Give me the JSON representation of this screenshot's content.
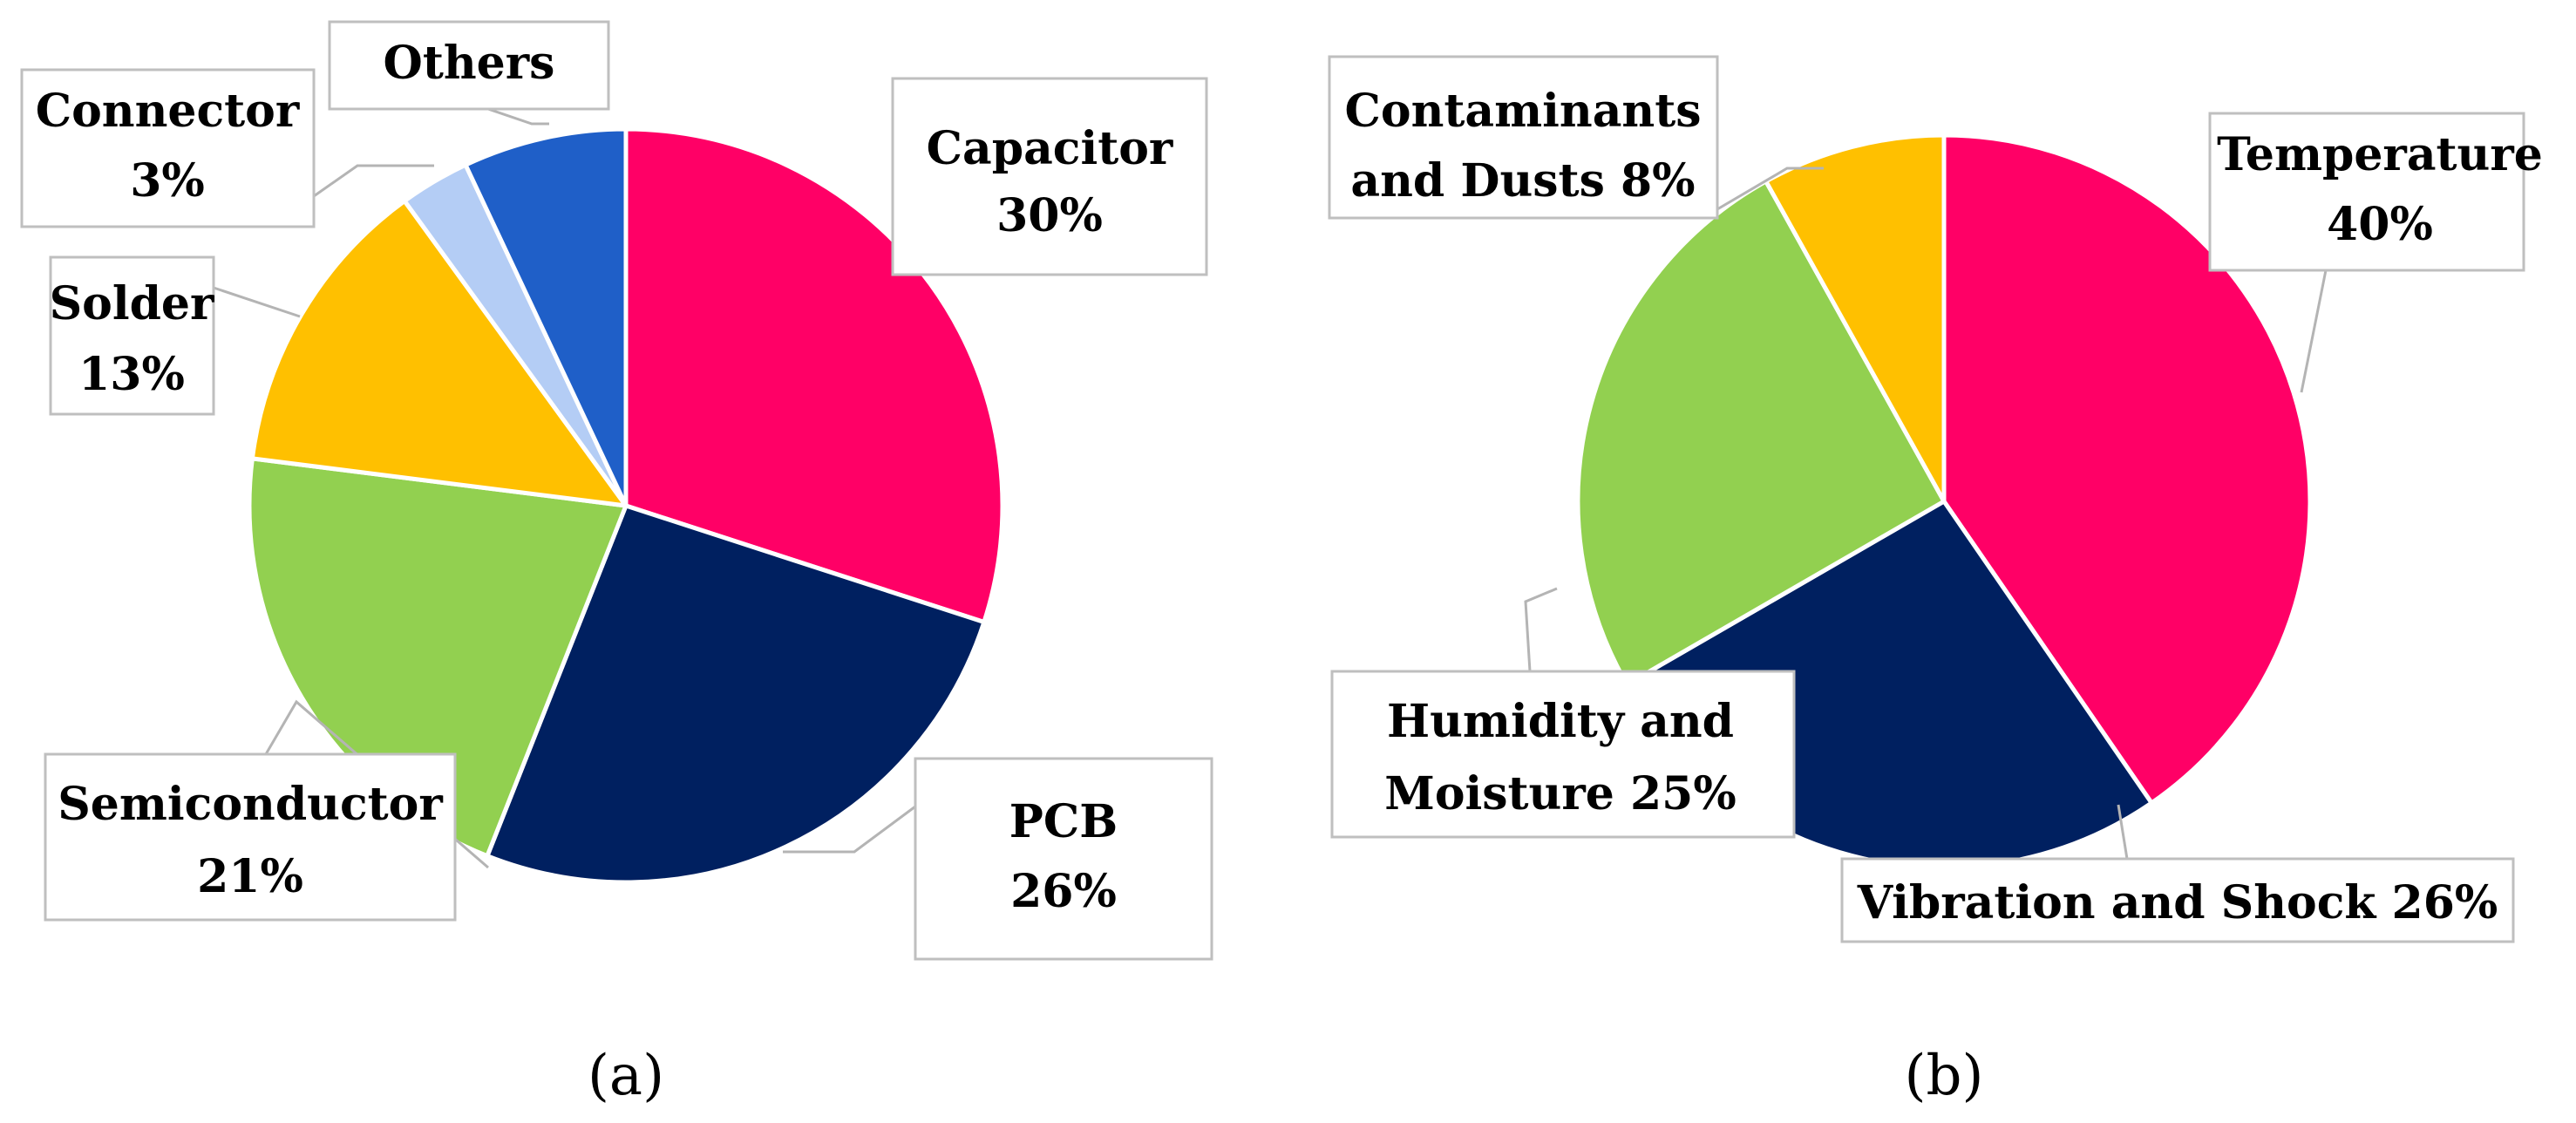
{
  "chart_data": [
    {
      "type": "pie",
      "panel_label": "(a)",
      "slices": [
        {
          "name": "Capacitor",
          "value": 30,
          "color": "#FF0066",
          "label_lines": [
            "Capacitor",
            "30%"
          ]
        },
        {
          "name": "PCB",
          "value": 26,
          "color": "#002060",
          "label_lines": [
            "PCB",
            "26%"
          ]
        },
        {
          "name": "Semiconductor",
          "value": 21,
          "color": "#92D050",
          "label_lines": [
            "Semiconductor",
            "21%"
          ]
        },
        {
          "name": "Solder",
          "value": 13,
          "color": "#FFC000",
          "label_lines": [
            "Solder",
            "13%"
          ]
        },
        {
          "name": "Connector",
          "value": 3,
          "color": "#B4CDF5",
          "label_lines": [
            "Connector",
            "3%"
          ]
        },
        {
          "name": "Others",
          "value": 7,
          "color": "#1F5FC8",
          "label_lines": [
            "Others"
          ]
        }
      ]
    },
    {
      "type": "pie",
      "panel_label": "(b)",
      "slices": [
        {
          "name": "Temperature",
          "value": 40,
          "color": "#FF0066",
          "label_lines": [
            "Temperature",
            "40%"
          ]
        },
        {
          "name": "Vibration and Shock",
          "value": 26,
          "color": "#002060",
          "label_lines": [
            "Vibration and Shock 26%"
          ]
        },
        {
          "name": "Humidity and Moisture",
          "value": 25,
          "color": "#92D050",
          "label_lines": [
            "Humidity and",
            "Moisture 25%"
          ]
        },
        {
          "name": "Contaminants and Dusts",
          "value": 8,
          "color": "#FFC000",
          "label_lines": [
            "Contaminants",
            "and Dusts 8%"
          ]
        }
      ]
    }
  ]
}
